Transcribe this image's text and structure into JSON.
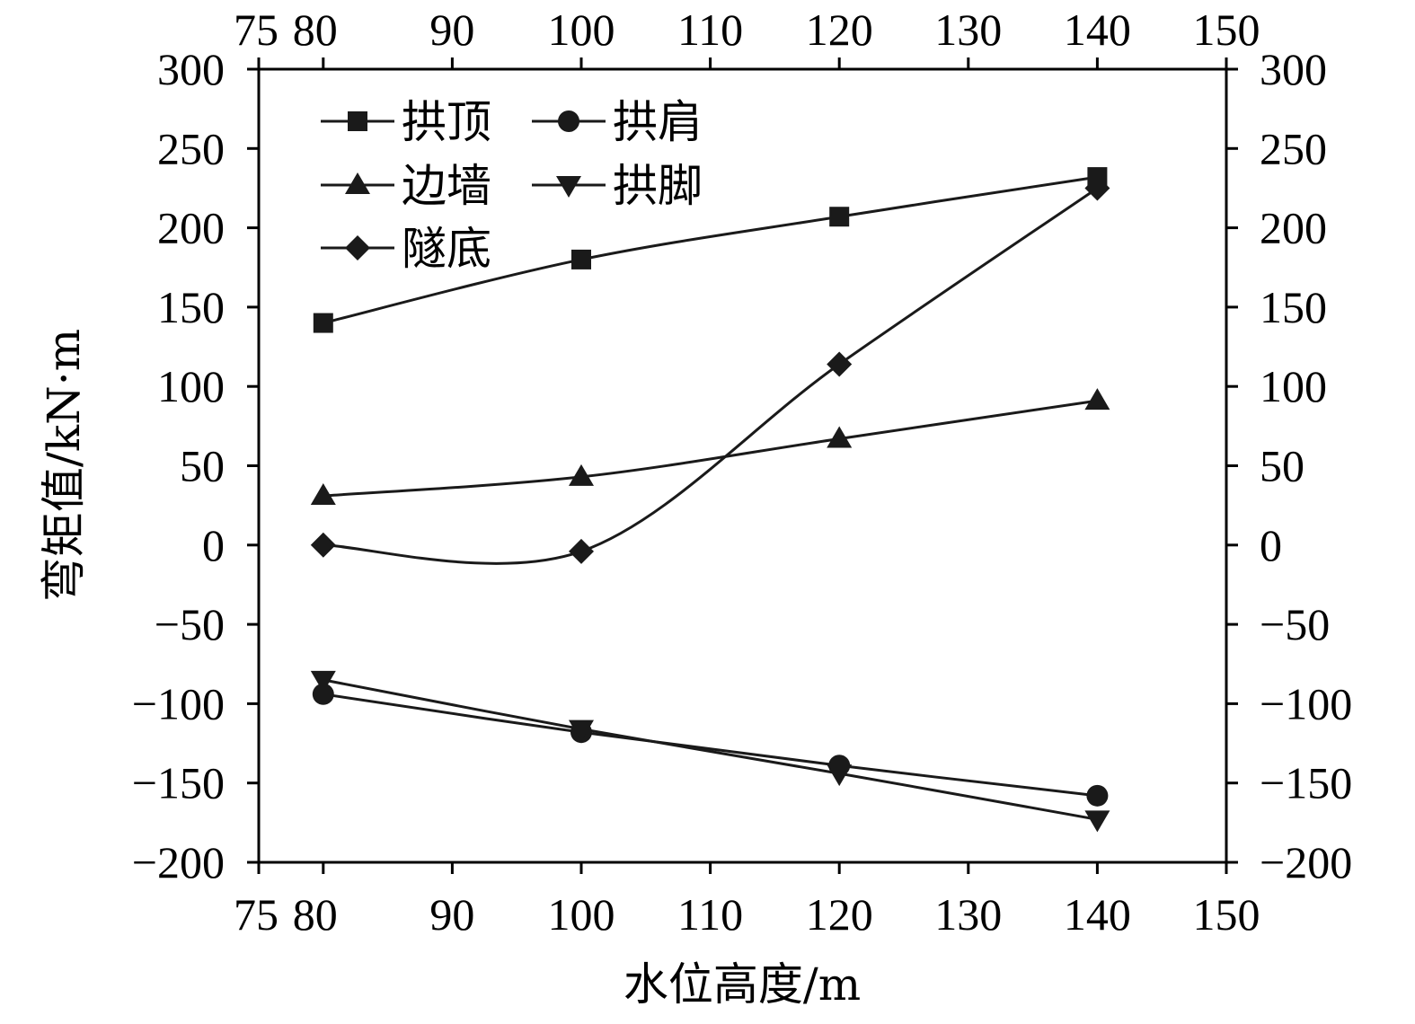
{
  "chart_data": {
    "type": "line",
    "xlabel": "水位高度/m",
    "ylabel": "弯矩值/kN·m",
    "xlim": [
      75,
      150
    ],
    "ylim": [
      -200,
      300
    ],
    "x_ticks": [
      75,
      80,
      90,
      100,
      110,
      120,
      130,
      140,
      150
    ],
    "y_ticks": [
      300,
      250,
      200,
      150,
      100,
      50,
      0,
      -50,
      -100,
      -150,
      -200
    ],
    "x": [
      80,
      100,
      120,
      140
    ],
    "series": [
      {
        "name": "拱顶",
        "marker": "square",
        "values": [
          140,
          180,
          207,
          232
        ]
      },
      {
        "name": "拱肩",
        "marker": "circle",
        "values": [
          -94,
          -118,
          -139,
          -158
        ]
      },
      {
        "name": "边墙",
        "marker": "triangle-up",
        "values": [
          31,
          43,
          67,
          91
        ]
      },
      {
        "name": "拱脚",
        "marker": "triangle-down",
        "values": [
          -85,
          -116,
          -144,
          -173
        ]
      },
      {
        "name": "隧底",
        "marker": "diamond",
        "values": [
          0,
          -4,
          114,
          225
        ]
      }
    ],
    "legend_position": "top-left",
    "grid": false,
    "color": "#000000"
  }
}
